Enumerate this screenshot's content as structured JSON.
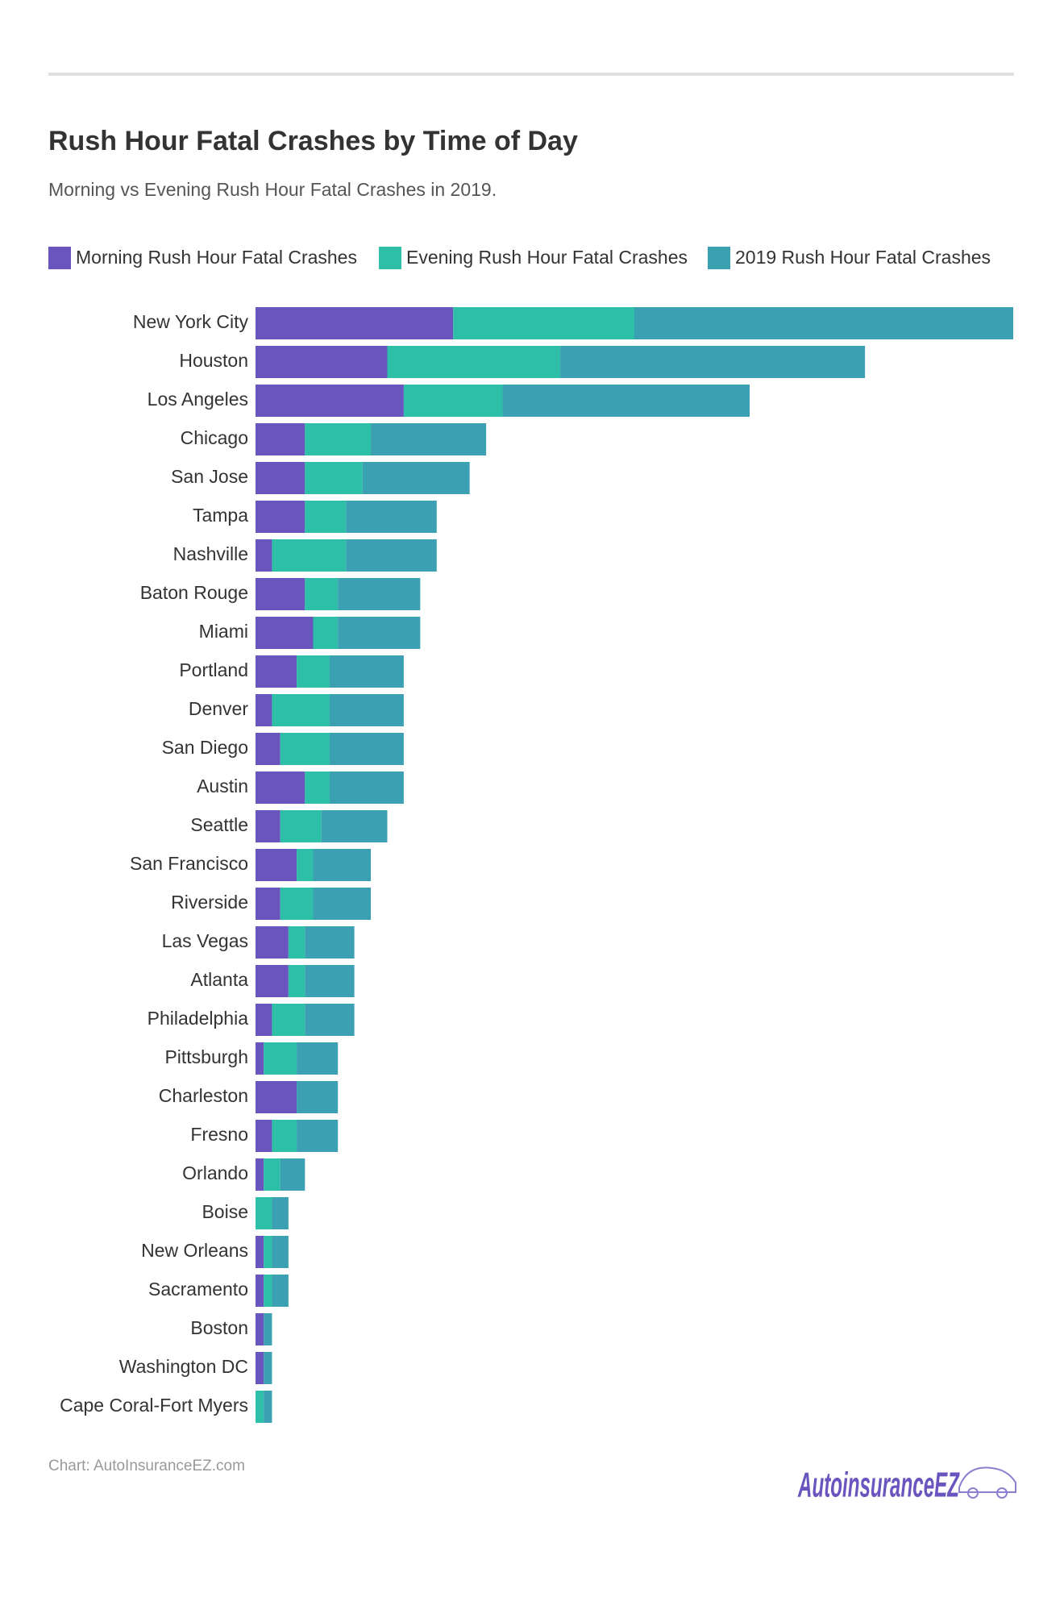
{
  "chart_data": {
    "type": "stacked-bar",
    "orientation": "horizontal",
    "title": "Rush Hour Fatal Crashes by Time of Day",
    "subtitle": "Morning vs Evening Rush Hour Fatal Crashes in 2019.",
    "categories": [
      "New York City",
      "Houston",
      "Los Angeles",
      "Chicago",
      "San Jose",
      "Tampa",
      "Nashville",
      "Baton Rouge",
      "Miami",
      "Portland",
      "Denver",
      "San Diego",
      "Austin",
      "Seattle",
      "San Francisco",
      "Riverside",
      "Las Vegas",
      "Atlanta",
      "Philadelphia",
      "Pittsburgh",
      "Charleston",
      "Fresno",
      "Orlando",
      "Boise",
      "New Orleans",
      "Sacramento",
      "Boston",
      "Washington DC",
      "Cape Coral-Fort Myers"
    ],
    "series": [
      {
        "name": "Morning Rush Hour Fatal Crashes",
        "color": "#6a55bf",
        "values": [
          24,
          16,
          18,
          6,
          6,
          6,
          2,
          6,
          7,
          5,
          2,
          3,
          6,
          3,
          5,
          3,
          4,
          4,
          2,
          1,
          5,
          2,
          1,
          0,
          1,
          1,
          1,
          1,
          0
        ]
      },
      {
        "name": "Evening Rush Hour Fatal Crashes",
        "color": "#2dbfa8",
        "values": [
          22,
          21,
          12,
          8,
          7,
          5,
          9,
          4,
          3,
          4,
          7,
          6,
          3,
          5,
          2,
          4,
          2,
          2,
          4,
          4,
          0,
          3,
          2,
          2,
          1,
          1,
          0,
          0,
          1
        ]
      },
      {
        "name": "2019 Rush Hour Fatal Crashes",
        "color": "#3ba0b1",
        "values": [
          46,
          37,
          30,
          14,
          13,
          11,
          11,
          10,
          10,
          9,
          9,
          9,
          9,
          8,
          7,
          7,
          6,
          6,
          6,
          5,
          5,
          5,
          3,
          2,
          2,
          2,
          1,
          1,
          1
        ]
      }
    ],
    "legend": "top-left",
    "source": "Chart: AutoInsuranceEZ.com",
    "logo": "AutoinsuranceEZ"
  }
}
